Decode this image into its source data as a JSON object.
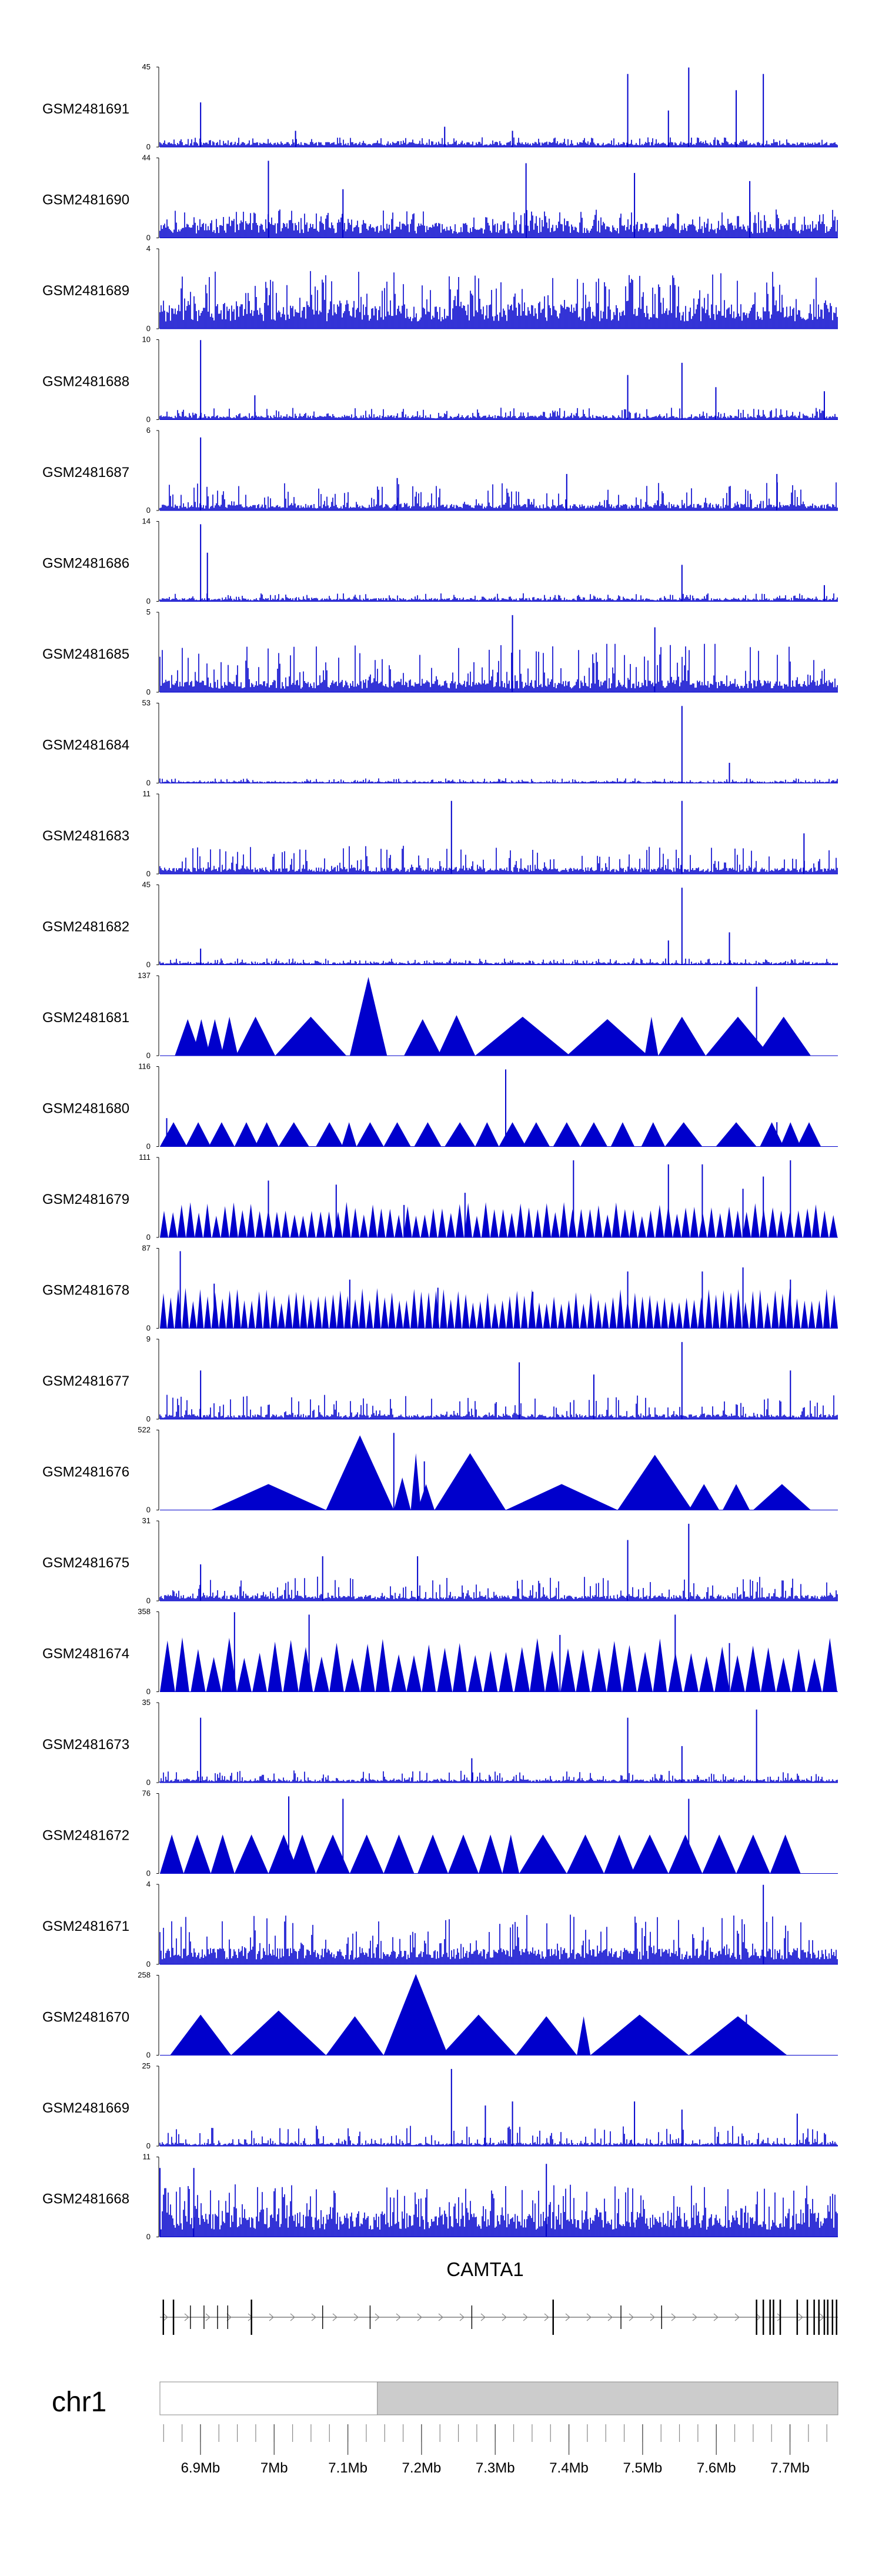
{
  "chart_data": {
    "type": "genome-browser-tracks",
    "track_color": "#0000CC",
    "tracks": [
      {
        "name": "GSM2481691",
        "ymin": "0",
        "ymax": "45",
        "style": "bar",
        "baseline": 0.06,
        "noise": 0.12,
        "spikes": [
          [
            0.06,
            0.55
          ],
          [
            0.2,
            0.2
          ],
          [
            0.42,
            0.25
          ],
          [
            0.52,
            0.2
          ],
          [
            0.69,
            0.9
          ],
          [
            0.75,
            0.45
          ],
          [
            0.78,
            0.98
          ],
          [
            0.85,
            0.7
          ],
          [
            0.89,
            0.9
          ]
        ]
      },
      {
        "name": "GSM2481690",
        "ymin": "0",
        "ymax": "44",
        "style": "bar",
        "baseline": 0.18,
        "noise": 0.35,
        "spikes": [
          [
            0.16,
            0.95
          ],
          [
            0.27,
            0.6
          ],
          [
            0.54,
            0.92
          ],
          [
            0.7,
            0.8
          ],
          [
            0.87,
            0.7
          ]
        ]
      },
      {
        "name": "GSM2481689",
        "ymin": "0",
        "ymax": "4",
        "style": "bar",
        "baseline": 0.3,
        "noise": 0.72,
        "spikes": []
      },
      {
        "name": "GSM2481688",
        "ymin": "0",
        "ymax": "10",
        "style": "bar",
        "baseline": 0.05,
        "noise": 0.15,
        "spikes": [
          [
            0.06,
            0.98
          ],
          [
            0.14,
            0.3
          ],
          [
            0.69,
            0.55
          ],
          [
            0.77,
            0.7
          ],
          [
            0.82,
            0.4
          ],
          [
            0.98,
            0.35
          ]
        ]
      },
      {
        "name": "GSM2481687",
        "ymin": "0",
        "ymax": "6",
        "style": "bar",
        "baseline": 0.08,
        "noise": 0.35,
        "spikes": [
          [
            0.06,
            0.9
          ],
          [
            0.35,
            0.4
          ],
          [
            0.6,
            0.45
          ],
          [
            0.91,
            0.45
          ]
        ]
      },
      {
        "name": "GSM2481686",
        "ymin": "0",
        "ymax": "14",
        "style": "bar",
        "baseline": 0.04,
        "noise": 0.1,
        "spikes": [
          [
            0.06,
            0.95
          ],
          [
            0.07,
            0.6
          ],
          [
            0.77,
            0.45
          ],
          [
            0.98,
            0.2
          ]
        ]
      },
      {
        "name": "GSM2481685",
        "ymin": "0",
        "ymax": "5",
        "style": "bar",
        "baseline": 0.15,
        "noise": 0.6,
        "spikes": [
          [
            0.52,
            0.95
          ],
          [
            0.73,
            0.8
          ]
        ]
      },
      {
        "name": "GSM2481684",
        "ymin": "0",
        "ymax": "53",
        "style": "bar",
        "baseline": 0.02,
        "noise": 0.06,
        "spikes": [
          [
            0.77,
            0.95
          ],
          [
            0.84,
            0.25
          ]
        ]
      },
      {
        "name": "GSM2481683",
        "ymin": "0",
        "ymax": "11",
        "style": "bar",
        "baseline": 0.08,
        "noise": 0.35,
        "spikes": [
          [
            0.43,
            0.9
          ],
          [
            0.77,
            0.9
          ],
          [
            0.95,
            0.5
          ]
        ]
      },
      {
        "name": "GSM2481682",
        "ymin": "0",
        "ymax": "45",
        "style": "bar",
        "baseline": 0.03,
        "noise": 0.08,
        "spikes": [
          [
            0.06,
            0.2
          ],
          [
            0.75,
            0.3
          ],
          [
            0.77,
            0.95
          ],
          [
            0.84,
            0.4
          ]
        ]
      },
      {
        "name": "GSM2481681",
        "ymin": "0",
        "ymax": "137",
        "style": "triangle",
        "peaks": [
          [
            0.022,
            0.06,
            0.45
          ],
          [
            0.048,
            0.074,
            0.45
          ],
          [
            0.068,
            0.094,
            0.45
          ],
          [
            0.09,
            0.115,
            0.48
          ],
          [
            0.112,
            0.17,
            0.48
          ],
          [
            0.17,
            0.275,
            0.48
          ],
          [
            0.28,
            0.335,
            0.97
          ],
          [
            0.36,
            0.415,
            0.45
          ],
          [
            0.41,
            0.465,
            0.5
          ],
          [
            0.465,
            0.605,
            0.48
          ],
          [
            0.6,
            0.72,
            0.45
          ],
          [
            0.715,
            0.735,
            0.48
          ],
          [
            0.735,
            0.805,
            0.48
          ],
          [
            0.805,
            0.9,
            0.48
          ],
          [
            0.88,
            0.96,
            0.48
          ]
        ],
        "spikes": [
          [
            0.88,
            0.85
          ]
        ]
      },
      {
        "name": "GSM2481680",
        "ymin": "0",
        "ymax": "116",
        "style": "triangle",
        "peaks": [
          [
            0.0,
            0.04,
            0.3
          ],
          [
            0.038,
            0.075,
            0.3
          ],
          [
            0.072,
            0.11,
            0.3
          ],
          [
            0.11,
            0.145,
            0.3
          ],
          [
            0.14,
            0.175,
            0.3
          ],
          [
            0.175,
            0.22,
            0.3
          ],
          [
            0.23,
            0.27,
            0.3
          ],
          [
            0.268,
            0.29,
            0.3
          ],
          [
            0.29,
            0.33,
            0.3
          ],
          [
            0.33,
            0.37,
            0.3
          ],
          [
            0.375,
            0.415,
            0.3
          ],
          [
            0.42,
            0.465,
            0.3
          ],
          [
            0.465,
            0.5,
            0.3
          ],
          [
            0.5,
            0.54,
            0.3
          ],
          [
            0.535,
            0.575,
            0.3
          ],
          [
            0.58,
            0.62,
            0.3
          ],
          [
            0.62,
            0.66,
            0.3
          ],
          [
            0.665,
            0.7,
            0.3
          ],
          [
            0.71,
            0.745,
            0.3
          ],
          [
            0.745,
            0.8,
            0.3
          ],
          [
            0.82,
            0.88,
            0.3
          ],
          [
            0.885,
            0.92,
            0.3
          ],
          [
            0.915,
            0.945,
            0.3
          ],
          [
            0.94,
            0.975,
            0.3
          ]
        ],
        "spikes": [
          [
            0.01,
            0.35
          ],
          [
            0.51,
            0.95
          ],
          [
            0.91,
            0.3
          ]
        ]
      },
      {
        "name": "GSM2481679",
        "ymin": "0",
        "ymax": "111",
        "style": "triangle_dense",
        "count": 78,
        "h": 0.35,
        "spikes": [
          [
            0.16,
            0.7
          ],
          [
            0.26,
            0.65
          ],
          [
            0.36,
            0.4
          ],
          [
            0.45,
            0.55
          ],
          [
            0.61,
            0.95
          ],
          [
            0.75,
            0.9
          ],
          [
            0.8,
            0.9
          ],
          [
            0.86,
            0.6
          ],
          [
            0.89,
            0.75
          ],
          [
            0.93,
            0.95
          ]
        ]
      },
      {
        "name": "GSM2481678",
        "ymin": "0",
        "ymax": "87",
        "style": "triangle_dense",
        "count": 92,
        "h": 0.4,
        "spikes": [
          [
            0.03,
            0.95
          ],
          [
            0.08,
            0.55
          ],
          [
            0.28,
            0.6
          ],
          [
            0.41,
            0.5
          ],
          [
            0.55,
            0.45
          ],
          [
            0.69,
            0.7
          ],
          [
            0.8,
            0.7
          ],
          [
            0.86,
            0.75
          ],
          [
            0.93,
            0.6
          ]
        ]
      },
      {
        "name": "GSM2481677",
        "ymin": "0",
        "ymax": "9",
        "style": "bar",
        "baseline": 0.06,
        "noise": 0.3,
        "spikes": [
          [
            0.06,
            0.6
          ],
          [
            0.53,
            0.7
          ],
          [
            0.64,
            0.55
          ],
          [
            0.77,
            0.95
          ],
          [
            0.93,
            0.6
          ]
        ]
      },
      {
        "name": "GSM2481676",
        "ymin": "0",
        "ymax": "522",
        "style": "triangle",
        "peaks": [
          [
            0.075,
            0.245,
            0.32
          ],
          [
            0.245,
            0.345,
            0.92
          ],
          [
            0.345,
            0.37,
            0.4
          ],
          [
            0.37,
            0.385,
            0.7
          ],
          [
            0.38,
            0.405,
            0.32
          ],
          [
            0.405,
            0.51,
            0.7
          ],
          [
            0.51,
            0.675,
            0.32
          ],
          [
            0.675,
            0.785,
            0.68
          ],
          [
            0.78,
            0.825,
            0.32
          ],
          [
            0.83,
            0.87,
            0.32
          ],
          [
            0.875,
            0.96,
            0.32
          ]
        ],
        "spikes": [
          [
            0.345,
            0.95
          ],
          [
            0.39,
            0.6
          ]
        ]
      },
      {
        "name": "GSM2481675",
        "ymin": "0",
        "ymax": "31",
        "style": "bar",
        "baseline": 0.07,
        "noise": 0.3,
        "spikes": [
          [
            0.06,
            0.45
          ],
          [
            0.24,
            0.55
          ],
          [
            0.38,
            0.55
          ],
          [
            0.69,
            0.75
          ],
          [
            0.78,
            0.95
          ]
        ]
      },
      {
        "name": "GSM2481674",
        "ymin": "0",
        "ymax": "358",
        "style": "triangle_dense",
        "count": 44,
        "h": 0.55,
        "spikes": [
          [
            0.11,
            0.98
          ],
          [
            0.22,
            0.95
          ],
          [
            0.59,
            0.7
          ],
          [
            0.76,
            0.95
          ],
          [
            0.84,
            0.6
          ]
        ]
      },
      {
        "name": "GSM2481673",
        "ymin": "0",
        "ymax": "35",
        "style": "bar",
        "baseline": 0.04,
        "noise": 0.15,
        "spikes": [
          [
            0.06,
            0.8
          ],
          [
            0.46,
            0.3
          ],
          [
            0.69,
            0.8
          ],
          [
            0.77,
            0.45
          ],
          [
            0.88,
            0.9
          ]
        ]
      },
      {
        "name": "GSM2481672",
        "ymin": "0",
        "ymax": "76",
        "style": "triangle",
        "peaks": [
          [
            0.0,
            0.035,
            0.48
          ],
          [
            0.035,
            0.075,
            0.48
          ],
          [
            0.075,
            0.11,
            0.48
          ],
          [
            0.11,
            0.16,
            0.48
          ],
          [
            0.16,
            0.205,
            0.48
          ],
          [
            0.19,
            0.23,
            0.48
          ],
          [
            0.23,
            0.28,
            0.48
          ],
          [
            0.28,
            0.33,
            0.48
          ],
          [
            0.33,
            0.375,
            0.48
          ],
          [
            0.38,
            0.425,
            0.48
          ],
          [
            0.425,
            0.47,
            0.48
          ],
          [
            0.47,
            0.505,
            0.48
          ],
          [
            0.505,
            0.53,
            0.48
          ],
          [
            0.53,
            0.6,
            0.48
          ],
          [
            0.6,
            0.655,
            0.48
          ],
          [
            0.655,
            0.7,
            0.48
          ],
          [
            0.695,
            0.75,
            0.48
          ],
          [
            0.75,
            0.8,
            0.48
          ],
          [
            0.8,
            0.85,
            0.48
          ],
          [
            0.85,
            0.9,
            0.48
          ],
          [
            0.9,
            0.945,
            0.48
          ]
        ],
        "spikes": [
          [
            0.19,
            0.95
          ],
          [
            0.27,
            0.92
          ],
          [
            0.78,
            0.92
          ]
        ]
      },
      {
        "name": "GSM2481671",
        "ymin": "0",
        "ymax": "4",
        "style": "bar",
        "baseline": 0.2,
        "noise": 0.62,
        "spikes": [
          [
            0.89,
            0.98
          ]
        ]
      },
      {
        "name": "GSM2481670",
        "ymin": "0",
        "ymax": "258",
        "style": "triangle",
        "peaks": [
          [
            0.015,
            0.105,
            0.5
          ],
          [
            0.105,
            0.245,
            0.55
          ],
          [
            0.245,
            0.33,
            0.48
          ],
          [
            0.33,
            0.425,
            1.0
          ],
          [
            0.415,
            0.525,
            0.5
          ],
          [
            0.525,
            0.615,
            0.48
          ],
          [
            0.615,
            0.635,
            0.48
          ],
          [
            0.635,
            0.78,
            0.5
          ],
          [
            0.78,
            0.925,
            0.48
          ]
        ],
        "spikes": [
          [
            0.865,
            0.5
          ]
        ]
      },
      {
        "name": "GSM2481669",
        "ymin": "0",
        "ymax": "25",
        "style": "bar",
        "baseline": 0.04,
        "noise": 0.25,
        "spikes": [
          [
            0.43,
            0.95
          ],
          [
            0.48,
            0.5
          ],
          [
            0.52,
            0.55
          ],
          [
            0.7,
            0.55
          ],
          [
            0.77,
            0.45
          ],
          [
            0.94,
            0.4
          ]
        ]
      },
      {
        "name": "GSM2481668",
        "ymin": "0",
        "ymax": "11",
        "style": "bar",
        "baseline": 0.3,
        "noise": 0.65,
        "spikes": [
          [
            0.0,
            0.85
          ],
          [
            0.05,
            0.85
          ],
          [
            0.57,
            0.9
          ]
        ]
      }
    ],
    "gene": {
      "name": "CAMTA1",
      "strand": "+"
    },
    "chromosome": {
      "name": "chr1"
    },
    "xaxis": {
      "min_mb": 6.845,
      "max_mb": 7.765,
      "ticks": [
        "6.9Mb",
        "7Mb",
        "7.1Mb",
        "7.2Mb",
        "7.3Mb",
        "7.4Mb",
        "7.5Mb",
        "7.6Mb",
        "7.7Mb"
      ],
      "tick_values_mb": [
        6.9,
        7.0,
        7.1,
        7.2,
        7.3,
        7.4,
        7.5,
        7.6,
        7.7
      ],
      "highlight_start_mb": 7.14,
      "highlight_end_mb": 7.765
    }
  }
}
